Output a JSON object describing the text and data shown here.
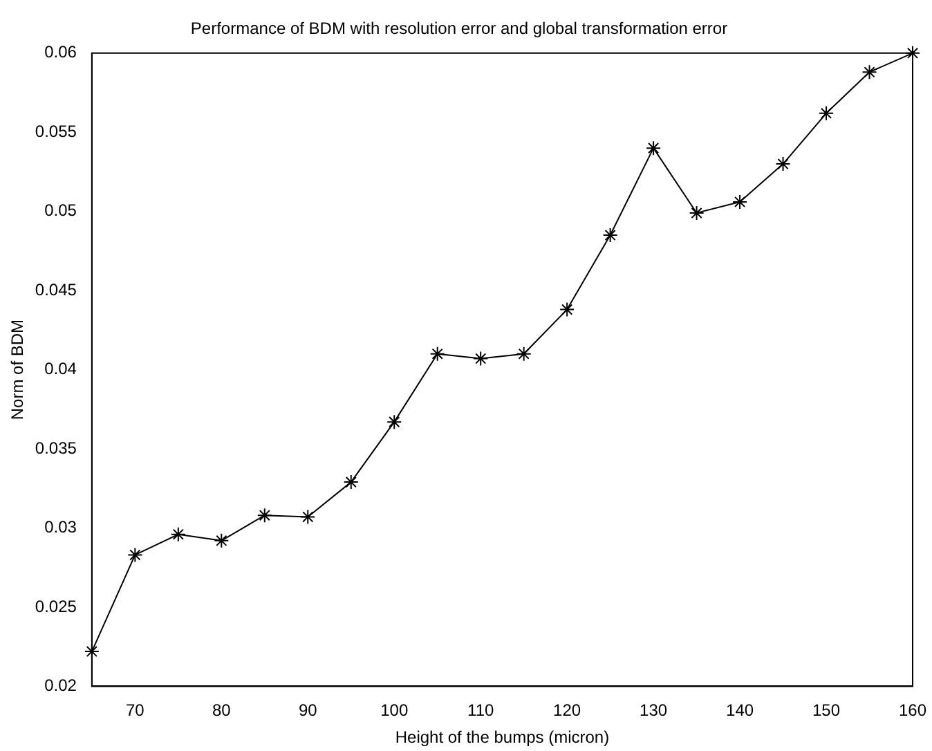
{
  "chart_data": {
    "type": "line",
    "title": "Performance of BDM with resolution error and global transformation error",
    "xlabel": "Height of the bumps (micron)",
    "ylabel": "Norm of BDM",
    "x": [
      65,
      70,
      75,
      80,
      85,
      90,
      95,
      100,
      105,
      110,
      115,
      120,
      125,
      130,
      135,
      140,
      145,
      150,
      155,
      160
    ],
    "series": [
      {
        "color": "#000000",
        "values": [
          0.0222,
          0.0283,
          0.0296,
          0.0292,
          0.0308,
          0.0307,
          0.0329,
          0.0367,
          0.041,
          0.0407,
          0.041,
          0.0438,
          0.0485,
          0.054,
          0.0499,
          0.0506,
          0.053,
          0.0562,
          0.0588,
          0.06
        ]
      }
    ],
    "xlim": [
      65,
      160
    ],
    "xticks": [
      70,
      80,
      90,
      100,
      110,
      120,
      130,
      140,
      150,
      160
    ],
    "ylim": [
      0.02,
      0.06
    ],
    "yticks": [
      0.02,
      0.025,
      0.03,
      0.035,
      0.04,
      0.045,
      0.05,
      0.055,
      0.06
    ],
    "marker": "cross",
    "line_style": "solid"
  }
}
